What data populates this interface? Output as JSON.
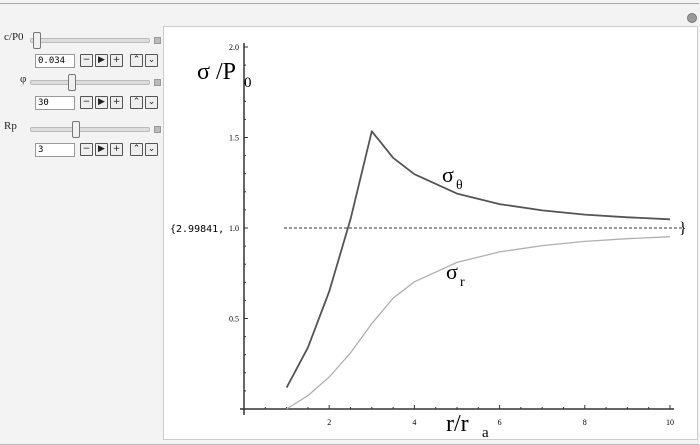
{
  "controls": [
    {
      "label": "c/P0",
      "value": "0.034",
      "slider_fraction": 0.02
    },
    {
      "label": "φ",
      "value": "30",
      "slider_fraction": 0.33
    },
    {
      "label": "Rp",
      "value": "3",
      "slider_fraction": 0.37
    }
  ],
  "buttons": {
    "decrement": "−",
    "play": "▶",
    "increment": "+",
    "faster": "⌃",
    "slower": "⌄",
    "direction": "→"
  },
  "output": {
    "left_text": "{2.99841,",
    "right_text": "}"
  },
  "chart_data": {
    "type": "line",
    "ylabel": "σ /P",
    "ylabel_sub": "0",
    "xlabel": "r/r",
    "xlabel_sub": "a",
    "xlim": [
      0,
      10
    ],
    "ylim": [
      0,
      2.0
    ],
    "xticks": [
      "2",
      "4",
      "6",
      "8",
      "10"
    ],
    "yticks": [
      "0.5",
      "1.0",
      "1.5",
      "2.0"
    ],
    "x": [
      1,
      1.5,
      2,
      2.5,
      3,
      3.5,
      4,
      5,
      6,
      7,
      8,
      9,
      10
    ],
    "series": [
      {
        "name": "σ",
        "sub": "θ",
        "color": "#555555",
        "values": [
          0.118,
          0.339,
          0.649,
          1.048,
          1.534,
          1.388,
          1.297,
          1.19,
          1.132,
          1.097,
          1.074,
          1.059,
          1.048
        ]
      },
      {
        "name": "σ",
        "sub": "r",
        "color": "#b0b0b0",
        "values": [
          0,
          0.074,
          0.177,
          0.31,
          0.472,
          0.612,
          0.703,
          0.81,
          0.868,
          0.903,
          0.926,
          0.941,
          0.952
        ]
      }
    ],
    "reference_line": {
      "y": 1.0,
      "style": "dashed"
    }
  }
}
